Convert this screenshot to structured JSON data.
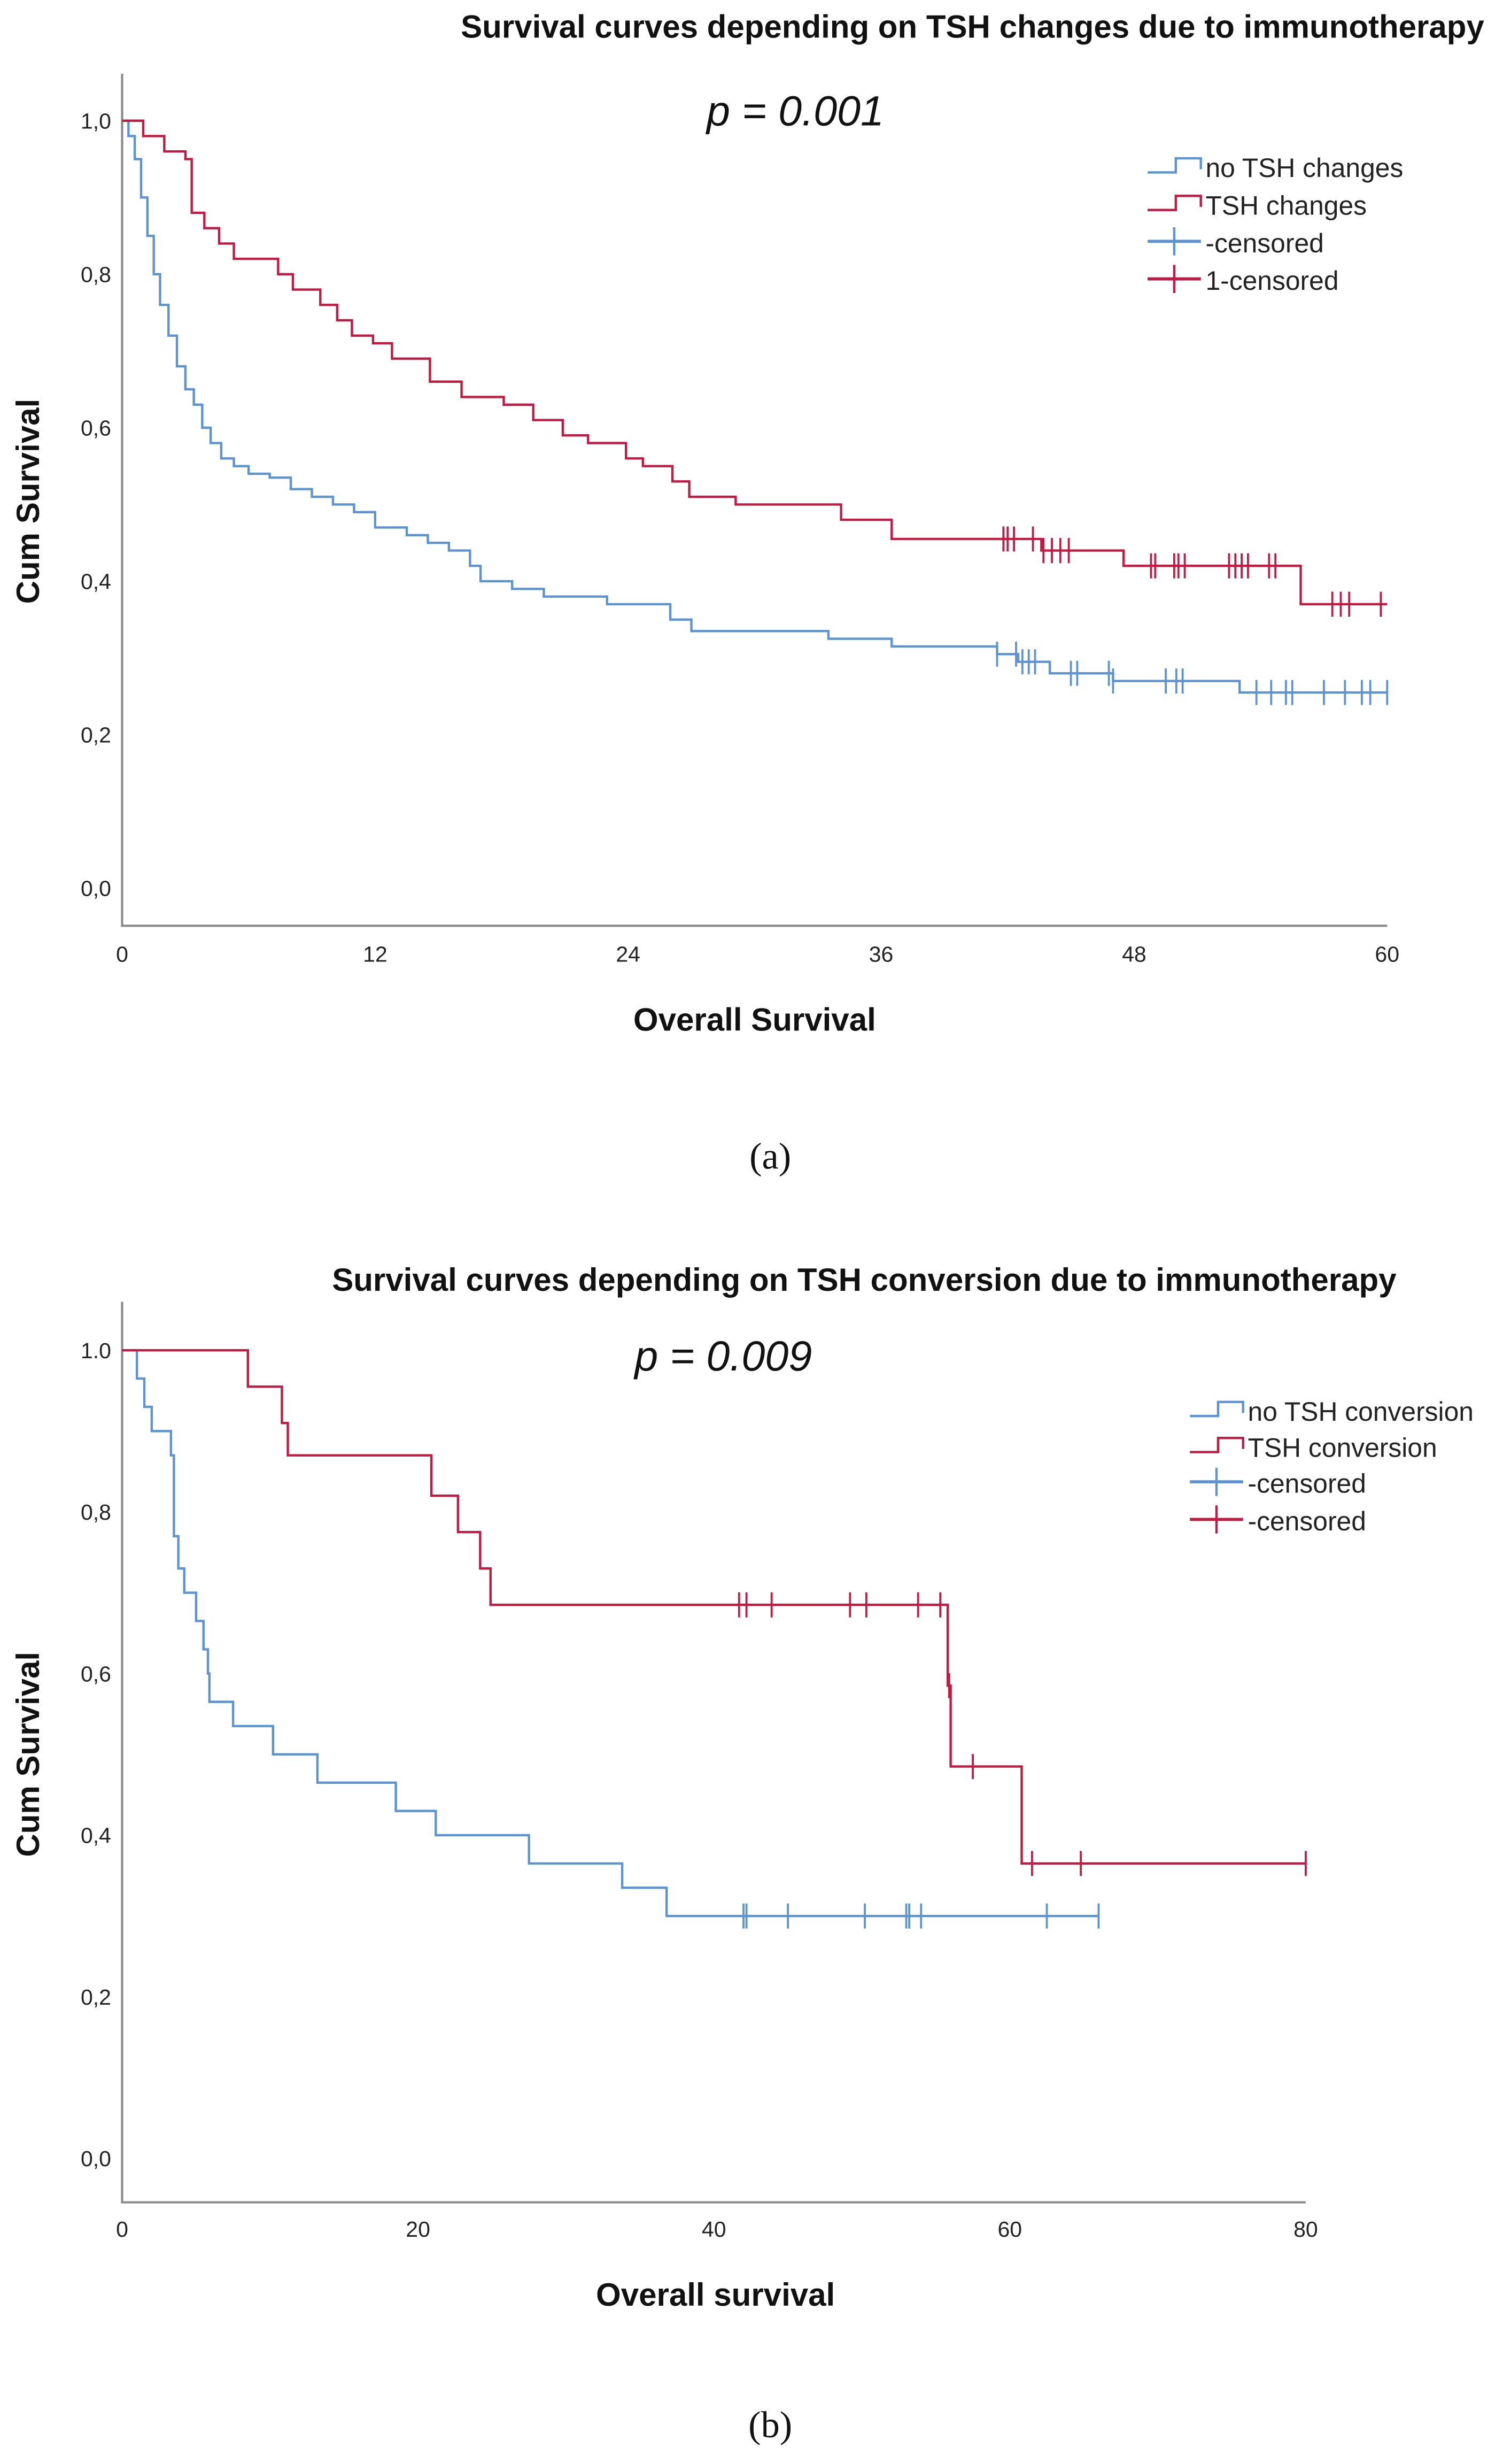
{
  "colors": {
    "red": "#c21a42",
    "blue": "#5b93d3",
    "axis": "#888888"
  },
  "chart_data": [
    {
      "type": "line",
      "subtype": "kaplan-meier",
      "panel_label": "(a)",
      "title": "Survival curves depending on TSH changes due to immunotherapy",
      "annotation": "p = 0.001",
      "xlabel": "Overall Survival",
      "ylabel": "Cum Survival",
      "xlim": [
        0,
        60
      ],
      "ylim": [
        0,
        1
      ],
      "xticks": [
        0,
        12,
        24,
        36,
        48,
        60
      ],
      "xtick_labels": [
        "0",
        "12",
        "24",
        "36",
        "48",
        "60"
      ],
      "yticks": [
        0,
        0.2,
        0.4,
        0.6,
        0.8,
        1.0
      ],
      "ytick_labels": [
        "0,0",
        "0,2",
        "0,4",
        "0,6",
        "0,8",
        "1,0"
      ],
      "grid": false,
      "legend_position": "top-right",
      "legend": [
        "no TSH changes",
        "TSH changes",
        "-censored",
        "1-censored"
      ],
      "series": [
        {
          "name": "no TSH changes",
          "color_key": "blue",
          "end": 60,
          "steps": [
            [
              0,
              1.0
            ],
            [
              0.3,
              0.98
            ],
            [
              0.6,
              0.95
            ],
            [
              0.9,
              0.9
            ],
            [
              1.2,
              0.85
            ],
            [
              1.5,
              0.8
            ],
            [
              1.8,
              0.76
            ],
            [
              2.2,
              0.72
            ],
            [
              2.6,
              0.68
            ],
            [
              3.0,
              0.65
            ],
            [
              3.4,
              0.63
            ],
            [
              3.8,
              0.6
            ],
            [
              4.2,
              0.58
            ],
            [
              4.7,
              0.56
            ],
            [
              5.3,
              0.55
            ],
            [
              6.0,
              0.54
            ],
            [
              7.0,
              0.535
            ],
            [
              8.0,
              0.52
            ],
            [
              9.0,
              0.51
            ],
            [
              10.0,
              0.5
            ],
            [
              11.0,
              0.49
            ],
            [
              12.0,
              0.47
            ],
            [
              13.5,
              0.46
            ],
            [
              14.5,
              0.45
            ],
            [
              15.5,
              0.44
            ],
            [
              16.5,
              0.42
            ],
            [
              17.0,
              0.4
            ],
            [
              18.5,
              0.39
            ],
            [
              20.0,
              0.38
            ],
            [
              23.0,
              0.37
            ],
            [
              26.0,
              0.35
            ],
            [
              27.0,
              0.335
            ],
            [
              33.5,
              0.325
            ],
            [
              36.5,
              0.315
            ],
            [
              41.5,
              0.305
            ],
            [
              42.5,
              0.295
            ],
            [
              44.0,
              0.28
            ],
            [
              47.0,
              0.27
            ],
            [
              53.0,
              0.255
            ]
          ],
          "censored": [
            41.5,
            42.4,
            42.7,
            43.0,
            43.3,
            45.0,
            45.3,
            46.8,
            47.0,
            49.5,
            50.0,
            50.3,
            53.8,
            54.5,
            55.2,
            55.5,
            57.0,
            58.0,
            58.8,
            59.2,
            60.0
          ]
        },
        {
          "name": "TSH changes",
          "color_key": "red",
          "end": 60,
          "steps": [
            [
              0,
              1.0
            ],
            [
              1.0,
              0.98
            ],
            [
              2.0,
              0.96
            ],
            [
              3.0,
              0.95
            ],
            [
              3.3,
              0.88
            ],
            [
              3.9,
              0.86
            ],
            [
              4.6,
              0.84
            ],
            [
              5.3,
              0.82
            ],
            [
              7.4,
              0.8
            ],
            [
              8.1,
              0.78
            ],
            [
              9.4,
              0.76
            ],
            [
              10.2,
              0.74
            ],
            [
              10.9,
              0.72
            ],
            [
              11.9,
              0.71
            ],
            [
              12.8,
              0.69
            ],
            [
              14.6,
              0.66
            ],
            [
              16.1,
              0.64
            ],
            [
              18.1,
              0.63
            ],
            [
              19.5,
              0.61
            ],
            [
              20.9,
              0.59
            ],
            [
              22.1,
              0.58
            ],
            [
              23.9,
              0.56
            ],
            [
              24.7,
              0.55
            ],
            [
              26.1,
              0.53
            ],
            [
              26.9,
              0.51
            ],
            [
              29.1,
              0.5
            ],
            [
              34.1,
              0.48
            ],
            [
              36.5,
              0.455
            ],
            [
              43.6,
              0.44
            ],
            [
              47.5,
              0.42
            ],
            [
              55.9,
              0.37
            ]
          ],
          "censored": [
            41.8,
            42.0,
            42.3,
            43.2,
            43.7,
            44.1,
            44.5,
            44.9,
            48.8,
            49.0,
            49.9,
            50.1,
            50.4,
            52.5,
            52.8,
            53.1,
            53.4,
            54.4,
            54.7,
            57.4,
            57.8,
            58.2,
            59.7
          ]
        }
      ]
    },
    {
      "type": "line",
      "subtype": "kaplan-meier",
      "panel_label": "(b)",
      "title": "Survival curves depending on TSH conversion due to immunotherapy",
      "annotation": "p = 0.009",
      "xlabel": "Overall survival",
      "ylabel": "Cum Survival",
      "xlim": [
        0,
        80
      ],
      "ylim": [
        0,
        1
      ],
      "xticks": [
        0,
        20,
        40,
        60,
        80
      ],
      "xtick_labels": [
        "0",
        "20",
        "40",
        "60",
        "80"
      ],
      "yticks": [
        0,
        0.2,
        0.4,
        0.6,
        0.8,
        1.0
      ],
      "ytick_labels": [
        "0,0",
        "0,2",
        "0,4",
        "0,6",
        "0,8",
        "1.0"
      ],
      "grid": false,
      "legend_position": "top-right",
      "legend": [
        "no TSH conversion",
        "TSH conversion",
        "-censored",
        "-censored"
      ],
      "series": [
        {
          "name": "no TSH conversion",
          "color_key": "blue",
          "end": 66,
          "steps": [
            [
              0,
              1.0
            ],
            [
              1.0,
              0.965
            ],
            [
              1.5,
              0.93
            ],
            [
              2.0,
              0.9
            ],
            [
              3.3,
              0.87
            ],
            [
              3.5,
              0.77
            ],
            [
              3.8,
              0.73
            ],
            [
              4.2,
              0.7
            ],
            [
              5.0,
              0.665
            ],
            [
              5.5,
              0.63
            ],
            [
              5.8,
              0.6
            ],
            [
              5.9,
              0.565
            ],
            [
              7.5,
              0.535
            ],
            [
              10.2,
              0.5
            ],
            [
              13.2,
              0.465
            ],
            [
              18.5,
              0.43
            ],
            [
              21.2,
              0.4
            ],
            [
              27.5,
              0.365
            ],
            [
              33.8,
              0.335
            ],
            [
              36.8,
              0.3
            ]
          ],
          "censored": [
            42.0,
            42.2,
            45.0,
            50.2,
            53.0,
            53.2,
            54.0,
            62.5,
            66.0
          ]
        },
        {
          "name": "TSH conversion",
          "color_key": "red",
          "end": 80,
          "steps": [
            [
              0,
              1.0
            ],
            [
              8.5,
              0.955
            ],
            [
              10.8,
              0.91
            ],
            [
              11.2,
              0.87
            ],
            [
              20.9,
              0.82
            ],
            [
              22.7,
              0.775
            ],
            [
              24.2,
              0.73
            ],
            [
              24.9,
              0.685
            ],
            [
              55.8,
              0.585
            ],
            [
              56.0,
              0.485
            ],
            [
              60.8,
              0.365
            ]
          ],
          "censored": [
            41.7,
            42.2,
            43.9,
            49.2,
            50.3,
            53.8,
            55.3,
            55.9,
            57.5,
            61.5,
            64.8,
            80.0
          ]
        }
      ]
    }
  ]
}
